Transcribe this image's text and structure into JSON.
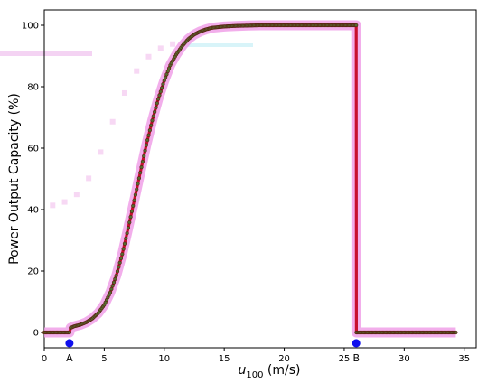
{
  "chart_data": {
    "type": "line",
    "xlabel_main": "u",
    "xlabel_sub": "100",
    "xlabel_unit": " (m/s)",
    "ylabel": "Power Output Capacity (%)",
    "xlim": [
      0,
      36
    ],
    "ylim": [
      -5,
      105
    ],
    "x_ticks": [
      0,
      5,
      10,
      15,
      20,
      25,
      30,
      35
    ],
    "x_tick_labels": [
      "0",
      "5",
      "10",
      "15",
      "20",
      "25",
      "30",
      "35"
    ],
    "y_ticks": [
      0,
      20,
      40,
      60,
      80,
      100
    ],
    "y_tick_labels": [
      "0",
      "20",
      "40",
      "60",
      "80",
      "100"
    ],
    "grid": false,
    "series": [
      {
        "line_color": "#c8102e",
        "marker_color": "#556b2f",
        "glow_color": "#f0a0e8",
        "points": [
          [
            0,
            0
          ],
          [
            0.5,
            0
          ],
          [
            1,
            0
          ],
          [
            1.5,
            0
          ],
          [
            2.0,
            0
          ],
          [
            2.1,
            0
          ],
          [
            2.2,
            1.5
          ],
          [
            2.5,
            2.0
          ],
          [
            3.0,
            2.5
          ],
          [
            3.5,
            3.3
          ],
          [
            4.0,
            4.5
          ],
          [
            4.5,
            6.3
          ],
          [
            5.0,
            9.0
          ],
          [
            5.5,
            13.0
          ],
          [
            6.0,
            18.5
          ],
          [
            6.5,
            25.5
          ],
          [
            7.0,
            34.0
          ],
          [
            7.5,
            43.0
          ],
          [
            8.0,
            52.0
          ],
          [
            8.5,
            61.0
          ],
          [
            9.0,
            69.0
          ],
          [
            9.5,
            76.0
          ],
          [
            10.0,
            82.0
          ],
          [
            10.5,
            87.0
          ],
          [
            11.0,
            90.5
          ],
          [
            11.5,
            93.3
          ],
          [
            12.0,
            95.5
          ],
          [
            12.5,
            97.0
          ],
          [
            13.0,
            98.0
          ],
          [
            13.5,
            98.7
          ],
          [
            14.0,
            99.2
          ],
          [
            15.0,
            99.6
          ],
          [
            16.0,
            99.8
          ],
          [
            17.0,
            99.9
          ],
          [
            18.0,
            100
          ],
          [
            20.0,
            100
          ],
          [
            22.0,
            100
          ],
          [
            24.0,
            100
          ],
          [
            25.0,
            100
          ],
          [
            26.0,
            100
          ],
          [
            26.01,
            0
          ],
          [
            27.0,
            0
          ],
          [
            28.0,
            0
          ],
          [
            29.0,
            0
          ],
          [
            30.0,
            0
          ],
          [
            31.0,
            0
          ],
          [
            32.0,
            0
          ],
          [
            33.0,
            0
          ],
          [
            34.0,
            0
          ],
          [
            34.3,
            0
          ]
        ]
      }
    ],
    "markers": [
      {
        "label": "A",
        "x": 2.1,
        "y": -3.5,
        "color": "#1010ee"
      },
      {
        "label": "B",
        "x": 26.0,
        "y": -3.5,
        "color": "#1010ee"
      }
    ]
  }
}
